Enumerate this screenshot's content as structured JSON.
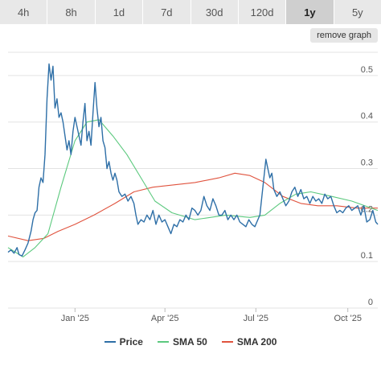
{
  "range_tabs": [
    {
      "label": "4h",
      "active": false
    },
    {
      "label": "8h",
      "active": false
    },
    {
      "label": "1d",
      "active": false
    },
    {
      "label": "7d",
      "active": false
    },
    {
      "label": "30d",
      "active": false
    },
    {
      "label": "120d",
      "active": false
    },
    {
      "label": "1y",
      "active": true
    },
    {
      "label": "5y",
      "active": false
    }
  ],
  "remove_graph_label": "remove graph",
  "chart_data": {
    "type": "line",
    "ylim": [
      0,
      0.55
    ],
    "y_ticks": [
      0,
      0.1,
      0.2,
      0.3,
      0.4,
      0.5
    ],
    "y_tick_labels": [
      "0",
      "0.1",
      "0.2",
      "0.3",
      "0.4",
      "0.5"
    ],
    "x_tick_labels": [
      {
        "label": "Jan '25",
        "date": "2025-01-01"
      },
      {
        "label": "Apr '25",
        "date": "2025-04-01"
      },
      {
        "label": "Jul '25",
        "date": "2025-07-01"
      },
      {
        "label": "Oct '25",
        "date": "2025-10-01"
      }
    ],
    "xlim": [
      "2024-10-26",
      "2025-10-31"
    ],
    "grid": true,
    "legend_position": "bottom",
    "series": [
      {
        "name": "Price",
        "color": "#2e6fa7",
        "points": [
          [
            "2024-10-26",
            0.12
          ],
          [
            "2024-10-29",
            0.125
          ],
          [
            "2024-11-01",
            0.118
          ],
          [
            "2024-11-04",
            0.13
          ],
          [
            "2024-11-06",
            0.115
          ],
          [
            "2024-11-09",
            0.112
          ],
          [
            "2024-11-12",
            0.125
          ],
          [
            "2024-11-15",
            0.14
          ],
          [
            "2024-11-18",
            0.165
          ],
          [
            "2024-11-20",
            0.19
          ],
          [
            "2024-11-22",
            0.205
          ],
          [
            "2024-11-24",
            0.21
          ],
          [
            "2024-11-26",
            0.26
          ],
          [
            "2024-11-28",
            0.28
          ],
          [
            "2024-11-30",
            0.27
          ],
          [
            "2024-12-02",
            0.33
          ],
          [
            "2024-12-04",
            0.45
          ],
          [
            "2024-12-06",
            0.525
          ],
          [
            "2024-12-08",
            0.49
          ],
          [
            "2024-12-10",
            0.52
          ],
          [
            "2024-12-12",
            0.43
          ],
          [
            "2024-12-14",
            0.45
          ],
          [
            "2024-12-16",
            0.41
          ],
          [
            "2024-12-18",
            0.42
          ],
          [
            "2024-12-20",
            0.4
          ],
          [
            "2024-12-22",
            0.37
          ],
          [
            "2024-12-24",
            0.34
          ],
          [
            "2024-12-26",
            0.36
          ],
          [
            "2024-12-28",
            0.33
          ],
          [
            "2024-12-30",
            0.38
          ],
          [
            "2025-01-01",
            0.41
          ],
          [
            "2025-01-03",
            0.39
          ],
          [
            "2025-01-05",
            0.37
          ],
          [
            "2025-01-07",
            0.35
          ],
          [
            "2025-01-09",
            0.4
          ],
          [
            "2025-01-11",
            0.44
          ],
          [
            "2025-01-13",
            0.36
          ],
          [
            "2025-01-15",
            0.38
          ],
          [
            "2025-01-17",
            0.35
          ],
          [
            "2025-01-19",
            0.42
          ],
          [
            "2025-01-21",
            0.485
          ],
          [
            "2025-01-23",
            0.43
          ],
          [
            "2025-01-25",
            0.39
          ],
          [
            "2025-01-27",
            0.41
          ],
          [
            "2025-01-29",
            0.36
          ],
          [
            "2025-01-31",
            0.345
          ],
          [
            "2025-02-02",
            0.3
          ],
          [
            "2025-02-04",
            0.315
          ],
          [
            "2025-02-06",
            0.29
          ],
          [
            "2025-02-08",
            0.275
          ],
          [
            "2025-02-10",
            0.29
          ],
          [
            "2025-02-12",
            0.275
          ],
          [
            "2025-02-14",
            0.25
          ],
          [
            "2025-02-17",
            0.24
          ],
          [
            "2025-02-20",
            0.245
          ],
          [
            "2025-02-23",
            0.23
          ],
          [
            "2025-02-26",
            0.24
          ],
          [
            "2025-03-01",
            0.225
          ],
          [
            "2025-03-03",
            0.2
          ],
          [
            "2025-03-05",
            0.18
          ],
          [
            "2025-03-08",
            0.19
          ],
          [
            "2025-03-11",
            0.185
          ],
          [
            "2025-03-14",
            0.2
          ],
          [
            "2025-03-17",
            0.19
          ],
          [
            "2025-03-20",
            0.21
          ],
          [
            "2025-03-23",
            0.18
          ],
          [
            "2025-03-26",
            0.2
          ],
          [
            "2025-03-29",
            0.185
          ],
          [
            "2025-04-01",
            0.19
          ],
          [
            "2025-04-04",
            0.175
          ],
          [
            "2025-04-07",
            0.16
          ],
          [
            "2025-04-10",
            0.18
          ],
          [
            "2025-04-13",
            0.175
          ],
          [
            "2025-04-16",
            0.19
          ],
          [
            "2025-04-19",
            0.185
          ],
          [
            "2025-04-22",
            0.2
          ],
          [
            "2025-04-25",
            0.19
          ],
          [
            "2025-04-28",
            0.215
          ],
          [
            "2025-05-01",
            0.21
          ],
          [
            "2025-05-04",
            0.2
          ],
          [
            "2025-05-07",
            0.21
          ],
          [
            "2025-05-10",
            0.24
          ],
          [
            "2025-05-13",
            0.22
          ],
          [
            "2025-05-16",
            0.21
          ],
          [
            "2025-05-19",
            0.235
          ],
          [
            "2025-05-22",
            0.22
          ],
          [
            "2025-05-25",
            0.2
          ],
          [
            "2025-05-28",
            0.2
          ],
          [
            "2025-05-31",
            0.21
          ],
          [
            "2025-06-03",
            0.19
          ],
          [
            "2025-06-06",
            0.2
          ],
          [
            "2025-06-09",
            0.19
          ],
          [
            "2025-06-12",
            0.2
          ],
          [
            "2025-06-15",
            0.185
          ],
          [
            "2025-06-18",
            0.18
          ],
          [
            "2025-06-21",
            0.175
          ],
          [
            "2025-06-24",
            0.19
          ],
          [
            "2025-06-27",
            0.18
          ],
          [
            "2025-06-30",
            0.175
          ],
          [
            "2025-07-03",
            0.19
          ],
          [
            "2025-07-05",
            0.2
          ],
          [
            "2025-07-07",
            0.24
          ],
          [
            "2025-07-09",
            0.28
          ],
          [
            "2025-07-11",
            0.32
          ],
          [
            "2025-07-13",
            0.3
          ],
          [
            "2025-07-15",
            0.28
          ],
          [
            "2025-07-17",
            0.29
          ],
          [
            "2025-07-19",
            0.255
          ],
          [
            "2025-07-22",
            0.24
          ],
          [
            "2025-07-25",
            0.25
          ],
          [
            "2025-07-28",
            0.235
          ],
          [
            "2025-07-31",
            0.22
          ],
          [
            "2025-08-03",
            0.23
          ],
          [
            "2025-08-06",
            0.25
          ],
          [
            "2025-08-09",
            0.26
          ],
          [
            "2025-08-12",
            0.24
          ],
          [
            "2025-08-15",
            0.255
          ],
          [
            "2025-08-18",
            0.235
          ],
          [
            "2025-08-21",
            0.24
          ],
          [
            "2025-08-24",
            0.225
          ],
          [
            "2025-08-27",
            0.24
          ],
          [
            "2025-08-30",
            0.23
          ],
          [
            "2025-09-02",
            0.235
          ],
          [
            "2025-09-05",
            0.225
          ],
          [
            "2025-09-08",
            0.245
          ],
          [
            "2025-09-11",
            0.235
          ],
          [
            "2025-09-14",
            0.24
          ],
          [
            "2025-09-17",
            0.22
          ],
          [
            "2025-09-20",
            0.205
          ],
          [
            "2025-09-23",
            0.21
          ],
          [
            "2025-09-26",
            0.205
          ],
          [
            "2025-09-29",
            0.215
          ],
          [
            "2025-10-02",
            0.22
          ],
          [
            "2025-10-05",
            0.21
          ],
          [
            "2025-10-08",
            0.215
          ],
          [
            "2025-10-11",
            0.22
          ],
          [
            "2025-10-14",
            0.2
          ],
          [
            "2025-10-17",
            0.22
          ],
          [
            "2025-10-20",
            0.185
          ],
          [
            "2025-10-23",
            0.19
          ],
          [
            "2025-10-26",
            0.21
          ],
          [
            "2025-10-29",
            0.185
          ],
          [
            "2025-10-31",
            0.18
          ]
        ]
      },
      {
        "name": "SMA 50",
        "color": "#5cc97e",
        "points": [
          [
            "2024-10-26",
            0.13
          ],
          [
            "2024-11-10",
            0.11
          ],
          [
            "2024-11-22",
            0.13
          ],
          [
            "2024-12-05",
            0.16
          ],
          [
            "2024-12-18",
            0.26
          ],
          [
            "2025-01-01",
            0.36
          ],
          [
            "2025-01-13",
            0.4
          ],
          [
            "2025-01-25",
            0.405
          ],
          [
            "2025-02-08",
            0.37
          ],
          [
            "2025-02-22",
            0.33
          ],
          [
            "2025-03-08",
            0.28
          ],
          [
            "2025-03-22",
            0.23
          ],
          [
            "2025-04-08",
            0.205
          ],
          [
            "2025-05-01",
            0.19
          ],
          [
            "2025-06-01",
            0.2
          ],
          [
            "2025-06-25",
            0.195
          ],
          [
            "2025-07-10",
            0.2
          ],
          [
            "2025-07-25",
            0.225
          ],
          [
            "2025-08-10",
            0.245
          ],
          [
            "2025-08-25",
            0.25
          ],
          [
            "2025-09-15",
            0.24
          ],
          [
            "2025-10-05",
            0.23
          ],
          [
            "2025-10-31",
            0.21
          ]
        ]
      },
      {
        "name": "SMA 200",
        "color": "#e0533e",
        "points": [
          [
            "2024-10-26",
            0.155
          ],
          [
            "2024-11-15",
            0.145
          ],
          [
            "2024-12-01",
            0.15
          ],
          [
            "2024-12-15",
            0.165
          ],
          [
            "2025-01-01",
            0.18
          ],
          [
            "2025-01-20",
            0.2
          ],
          [
            "2025-02-10",
            0.225
          ],
          [
            "2025-03-01",
            0.25
          ],
          [
            "2025-03-20",
            0.26
          ],
          [
            "2025-04-10",
            0.265
          ],
          [
            "2025-05-01",
            0.27
          ],
          [
            "2025-05-25",
            0.28
          ],
          [
            "2025-06-10",
            0.29
          ],
          [
            "2025-06-25",
            0.285
          ],
          [
            "2025-07-10",
            0.27
          ],
          [
            "2025-07-28",
            0.24
          ],
          [
            "2025-08-15",
            0.225
          ],
          [
            "2025-09-01",
            0.22
          ],
          [
            "2025-09-20",
            0.22
          ],
          [
            "2025-10-10",
            0.215
          ],
          [
            "2025-10-31",
            0.215
          ]
        ]
      }
    ]
  }
}
